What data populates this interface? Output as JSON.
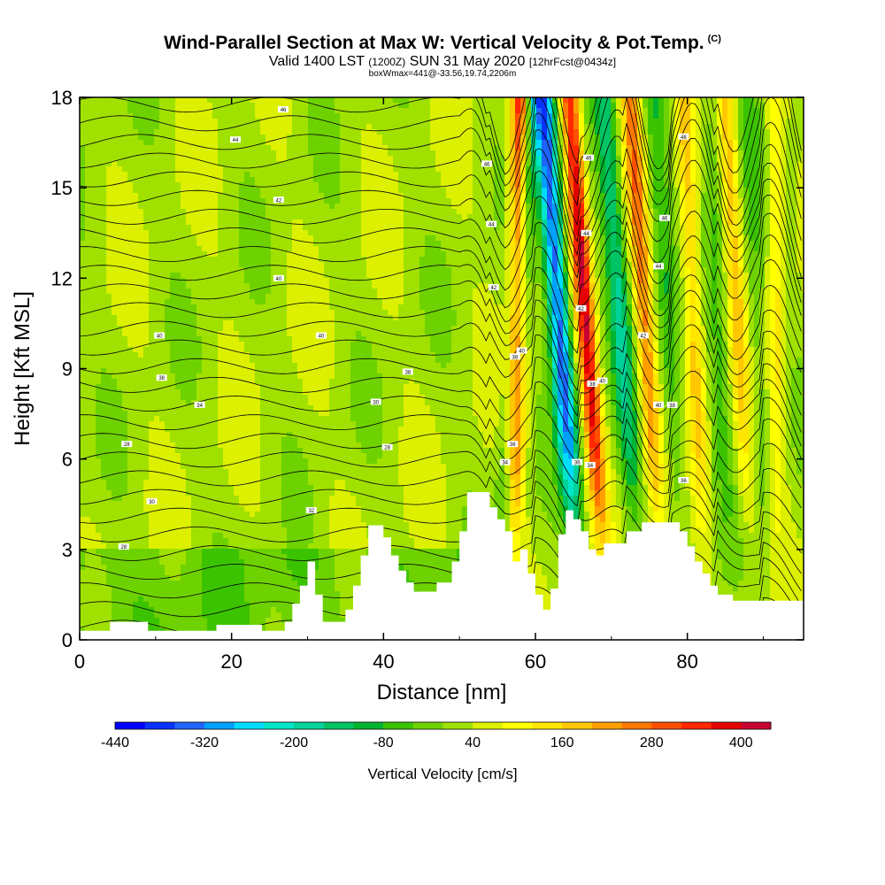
{
  "title": {
    "main": "Wind-Parallel Section at Max W: Vertical Velocity & Pot.Temp.",
    "copyright": "(C)",
    "valid_prefix": "Valid 1400 LST",
    "valid_utc": "(1200Z)",
    "valid_date": "SUN 31 May 2020",
    "forecast": "[12hrFcst@0434z]",
    "box_info": "boxWmax=441@-33.56,19.74,2206m"
  },
  "chart_data": {
    "type": "heatmap",
    "title": "Wind-Parallel Section at Max W: Vertical Velocity & Pot.Temp.",
    "xlabel": "Distance [nm]",
    "ylabel": "Height [Kft MSL]",
    "xlim": [
      0,
      95.3
    ],
    "ylim": [
      0,
      18
    ],
    "x_ticks": [
      "0",
      "20",
      "40",
      "60",
      "80"
    ],
    "y_ticks": [
      "0",
      "3",
      "6",
      "9",
      "12",
      "15",
      "18"
    ],
    "colorbar": {
      "title": "Vertical Velocity [cm/s]",
      "tick_labels": [
        "-440",
        "-320",
        "-200",
        "-80",
        "40",
        "160",
        "280",
        "400"
      ],
      "colors": [
        "#0000ff",
        "#0a32ff",
        "#1e64ff",
        "#00a0ff",
        "#00dcff",
        "#00e6c8",
        "#00d29b",
        "#00c364",
        "#00b432",
        "#3cc300",
        "#6ed200",
        "#a0e100",
        "#dcf000",
        "#ffff00",
        "#ffe600",
        "#ffc800",
        "#ffa000",
        "#ff7800",
        "#ff5000",
        "#ff2800",
        "#e60000",
        "#c80032"
      ]
    },
    "terrain_kft": [
      [
        0,
        0.3
      ],
      [
        4,
        0.3
      ],
      [
        4,
        0.6
      ],
      [
        9,
        0.6
      ],
      [
        9,
        0.3
      ],
      [
        18,
        0.3
      ],
      [
        18,
        0.5
      ],
      [
        24,
        0.5
      ],
      [
        24,
        0.3
      ],
      [
        27,
        0.3
      ],
      [
        27,
        0.6
      ],
      [
        28,
        0.6
      ],
      [
        28,
        1.2
      ],
      [
        29,
        1.2
      ],
      [
        29,
        1.8
      ],
      [
        30,
        1.8
      ],
      [
        30,
        2.6
      ],
      [
        31,
        2.6
      ],
      [
        31,
        1.5
      ],
      [
        32,
        1.5
      ],
      [
        32,
        0.6
      ],
      [
        35,
        0.6
      ],
      [
        35,
        1.0
      ],
      [
        36,
        1.0
      ],
      [
        36,
        1.8
      ],
      [
        37,
        1.8
      ],
      [
        37,
        2.8
      ],
      [
        38,
        2.8
      ],
      [
        38,
        3.8
      ],
      [
        40,
        3.8
      ],
      [
        40,
        3.4
      ],
      [
        41,
        3.4
      ],
      [
        41,
        2.8
      ],
      [
        42,
        2.8
      ],
      [
        42,
        2.3
      ],
      [
        43,
        2.3
      ],
      [
        43,
        1.9
      ],
      [
        44,
        1.9
      ],
      [
        44,
        1.6
      ],
      [
        47,
        1.6
      ],
      [
        47,
        1.9
      ],
      [
        49,
        1.9
      ],
      [
        49,
        2.6
      ],
      [
        50,
        2.6
      ],
      [
        50,
        3.6
      ],
      [
        51,
        3.6
      ],
      [
        51,
        4.9
      ],
      [
        54,
        4.9
      ],
      [
        54,
        4.4
      ],
      [
        55,
        4.4
      ],
      [
        55,
        4.0
      ],
      [
        56,
        4.0
      ],
      [
        56,
        3.6
      ],
      [
        57,
        3.6
      ],
      [
        57,
        2.6
      ],
      [
        58,
        2.6
      ],
      [
        58,
        3.0
      ],
      [
        59,
        3.0
      ],
      [
        59,
        2.2
      ],
      [
        60,
        2.2
      ],
      [
        60,
        1.5
      ],
      [
        61,
        1.5
      ],
      [
        61,
        1.0
      ],
      [
        62,
        1.0
      ],
      [
        62,
        1.7
      ],
      [
        63,
        1.7
      ],
      [
        63,
        3.5
      ],
      [
        64,
        3.5
      ],
      [
        64,
        4.3
      ],
      [
        65,
        4.3
      ],
      [
        65,
        4.0
      ],
      [
        66,
        4.0
      ],
      [
        66,
        3.6
      ],
      [
        67,
        3.6
      ],
      [
        67,
        3.0
      ],
      [
        68,
        3.0
      ],
      [
        68,
        2.8
      ],
      [
        69,
        2.8
      ],
      [
        69,
        3.2
      ],
      [
        72,
        3.2
      ],
      [
        72,
        3.6
      ],
      [
        74,
        3.6
      ],
      [
        74,
        3.9
      ],
      [
        79,
        3.9
      ],
      [
        79,
        3.6
      ],
      [
        80,
        3.6
      ],
      [
        80,
        3.1
      ],
      [
        81,
        3.1
      ],
      [
        81,
        2.6
      ],
      [
        82,
        2.6
      ],
      [
        82,
        2.2
      ],
      [
        83,
        2.2
      ],
      [
        83,
        1.8
      ],
      [
        84,
        1.8
      ],
      [
        84,
        1.5
      ],
      [
        86,
        1.5
      ],
      [
        86,
        1.3
      ],
      [
        95.3,
        1.3
      ]
    ],
    "features": [
      {
        "kind": "downdraft",
        "x_top": 59.5,
        "x_base": 56.0,
        "value": -200
      },
      {
        "kind": "updraft",
        "x_top": 58.0,
        "x_base": 57.2,
        "value": 400
      },
      {
        "kind": "downdraft",
        "x_top": 61.0,
        "x_base": 65.0,
        "value": -440
      },
      {
        "kind": "updraft",
        "x_top": 64.5,
        "x_base": 68.5,
        "value": 420
      },
      {
        "kind": "downdraft",
        "x_top": 69.0,
        "x_base": 73.0,
        "value": -200
      },
      {
        "kind": "updraft",
        "x_top": 72.5,
        "x_base": 76.0,
        "value": 250
      },
      {
        "kind": "downdraft",
        "x_top": 75.5,
        "x_base": 79.0,
        "value": -120
      },
      {
        "kind": "updraft",
        "x_top": 79.5,
        "x_base": 82.0,
        "value": 180
      },
      {
        "kind": "downdraft",
        "x_top": 83.0,
        "x_base": 85.0,
        "value": -80
      },
      {
        "kind": "updraft",
        "x_top": 85.0,
        "x_base": 88.0,
        "value": 160
      },
      {
        "kind": "downdraft",
        "x_top": 88.0,
        "x_base": 90.0,
        "value": -80
      },
      {
        "kind": "updraft",
        "x_top": 91.5,
        "x_base": 92.0,
        "value": 120
      }
    ],
    "potential_temperature_contours": {
      "count": 30,
      "units": "C"
    },
    "contour_labels": [
      {
        "x": 26.8,
        "y": 17.6,
        "text": "46"
      },
      {
        "x": 20.5,
        "y": 16.6,
        "text": "44"
      },
      {
        "x": 26.2,
        "y": 14.6,
        "text": "42"
      },
      {
        "x": 26.2,
        "y": 12.0,
        "text": "40"
      },
      {
        "x": 10.5,
        "y": 10.1,
        "text": "40"
      },
      {
        "x": 31.8,
        "y": 10.1,
        "text": "40"
      },
      {
        "x": 10.8,
        "y": 8.7,
        "text": "38"
      },
      {
        "x": 43.2,
        "y": 8.9,
        "text": "38"
      },
      {
        "x": 15.8,
        "y": 7.8,
        "text": "34"
      },
      {
        "x": 39.0,
        "y": 7.9,
        "text": "30"
      },
      {
        "x": 6.2,
        "y": 6.5,
        "text": "28"
      },
      {
        "x": 40.5,
        "y": 6.4,
        "text": "28"
      },
      {
        "x": 9.5,
        "y": 4.6,
        "text": "30"
      },
      {
        "x": 30.5,
        "y": 4.3,
        "text": "32"
      },
      {
        "x": 5.8,
        "y": 3.1,
        "text": "28"
      },
      {
        "x": 53.6,
        "y": 15.8,
        "text": "46"
      },
      {
        "x": 54.2,
        "y": 13.8,
        "text": "44"
      },
      {
        "x": 54.5,
        "y": 11.7,
        "text": "42"
      },
      {
        "x": 58.2,
        "y": 9.6,
        "text": "40"
      },
      {
        "x": 57.3,
        "y": 9.4,
        "text": "38"
      },
      {
        "x": 57.0,
        "y": 6.5,
        "text": "36"
      },
      {
        "x": 56.0,
        "y": 5.9,
        "text": "34"
      },
      {
        "x": 67.0,
        "y": 16.0,
        "text": "46"
      },
      {
        "x": 66.7,
        "y": 13.5,
        "text": "44"
      },
      {
        "x": 66.0,
        "y": 11.0,
        "text": "42"
      },
      {
        "x": 68.8,
        "y": 8.6,
        "text": "40"
      },
      {
        "x": 67.5,
        "y": 8.5,
        "text": "38"
      },
      {
        "x": 65.5,
        "y": 5.9,
        "text": "36"
      },
      {
        "x": 67.2,
        "y": 5.8,
        "text": "34"
      },
      {
        "x": 79.5,
        "y": 16.7,
        "text": "48"
      },
      {
        "x": 77.0,
        "y": 14.0,
        "text": "46"
      },
      {
        "x": 76.2,
        "y": 12.4,
        "text": "44"
      },
      {
        "x": 74.2,
        "y": 10.1,
        "text": "42"
      },
      {
        "x": 76.2,
        "y": 7.8,
        "text": "40"
      },
      {
        "x": 78.0,
        "y": 7.8,
        "text": "38"
      },
      {
        "x": 79.5,
        "y": 5.3,
        "text": "36"
      }
    ]
  }
}
